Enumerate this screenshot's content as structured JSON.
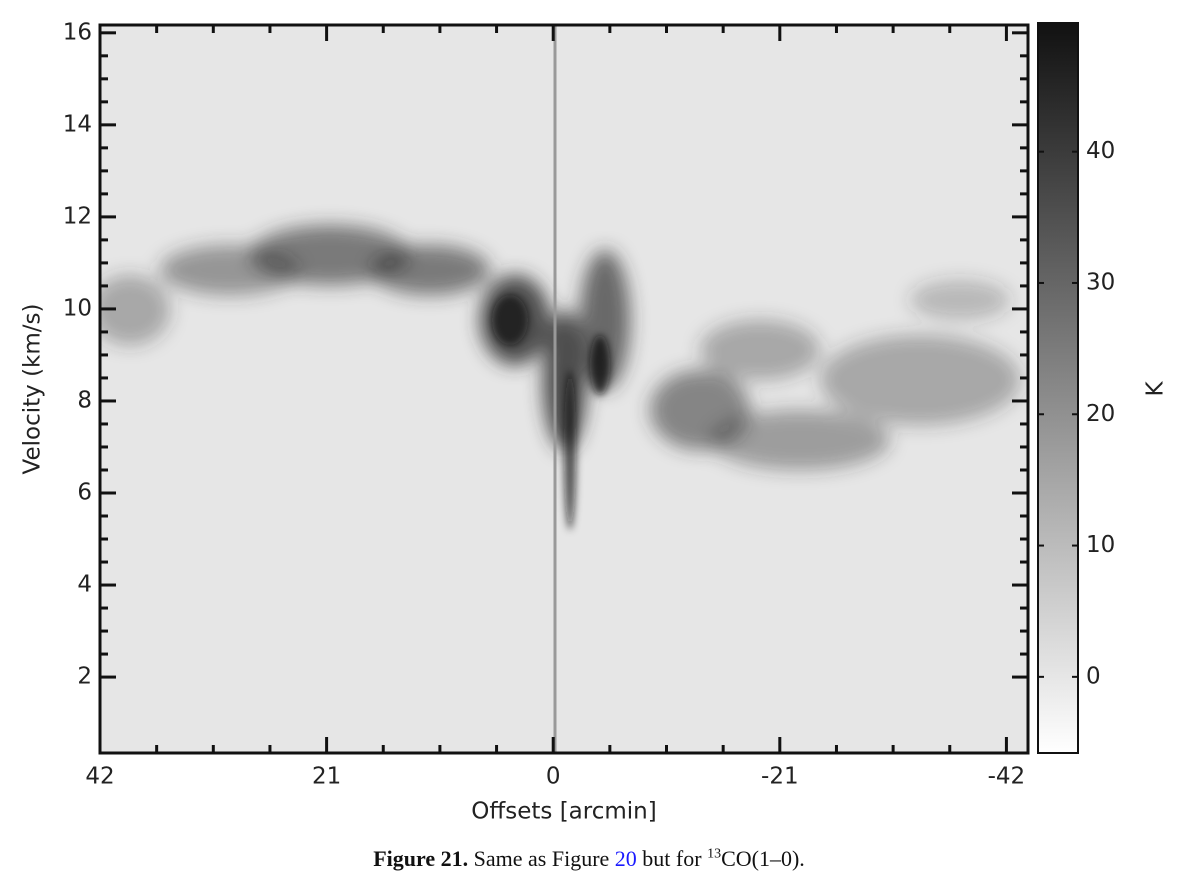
{
  "chart_data": {
    "type": "heatmap",
    "x_label": "Offsets [arcmin]",
    "y_label": "Velocity (km/s)",
    "xlim": [
      42,
      -44
    ],
    "xticks": [
      42,
      21,
      0,
      -21,
      -42
    ],
    "ylim": [
      0.35,
      16.17
    ],
    "yticks": [
      2,
      4,
      6,
      8,
      10,
      12,
      14,
      16
    ],
    "colorbar": {
      "label": "K",
      "lim": [
        -5.8,
        49.8
      ],
      "ticks": [
        0,
        10,
        20,
        30,
        40
      ],
      "colors": [
        "#ffffff",
        "#111111"
      ]
    },
    "background": "#e6e6e6"
  },
  "caption": {
    "label": "Figure 21.",
    "text": "Same as Figure",
    "link": "20",
    "text2": "but for",
    "sup": "13",
    "text3": "CO(1–0)."
  }
}
